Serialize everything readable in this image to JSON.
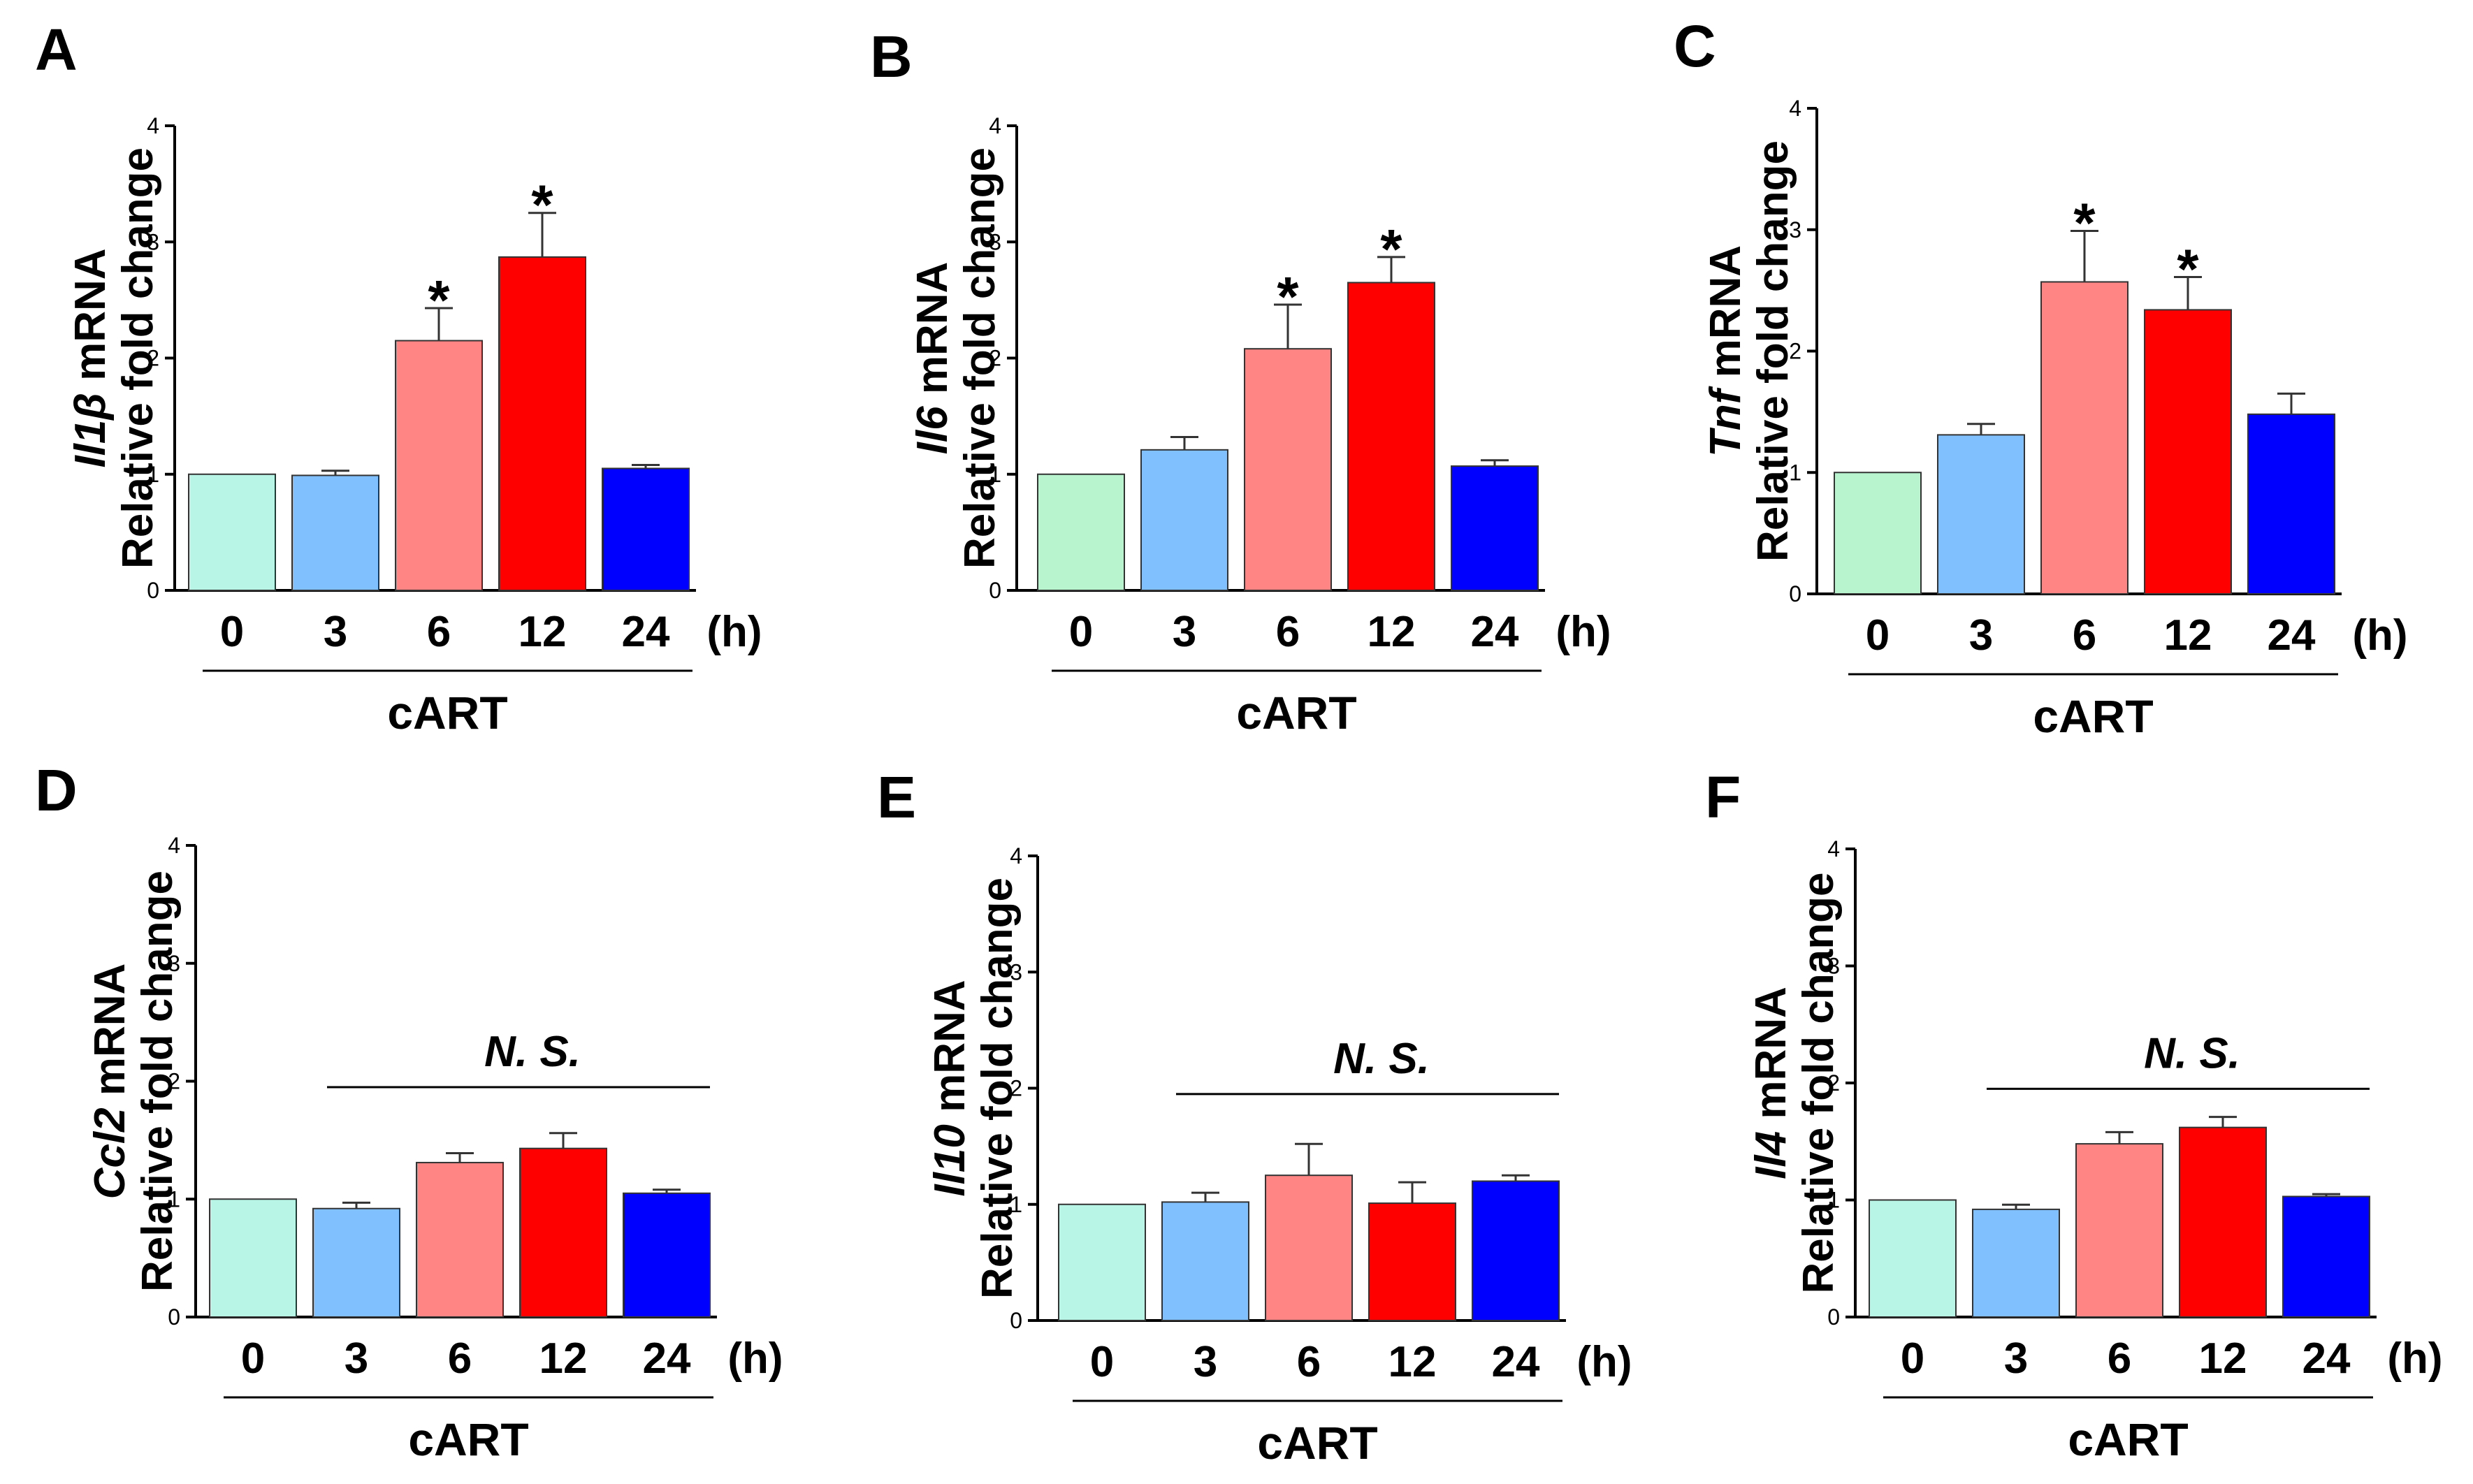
{
  "chart_data": [
    {
      "panel": "A",
      "type": "bar",
      "gene": "Il1β",
      "ylabel_suffix": " mRNA",
      "ylabel_line2": "Relative fold change",
      "categories": [
        "0",
        "3",
        "6",
        "12",
        "24"
      ],
      "unit_label": "(h)",
      "group_label": "cART",
      "values": [
        1.0,
        0.99,
        2.15,
        2.87,
        1.05
      ],
      "errors": [
        0.0,
        0.04,
        0.28,
        0.38,
        0.03
      ],
      "significance": [
        "",
        "",
        "*",
        "*",
        ""
      ],
      "ns_label": "",
      "colors": [
        "#b8f5e6",
        "#80c0ff",
        "#ff8585",
        "#ff0000",
        "#0000ff"
      ],
      "yticks": [
        "0",
        "1",
        "2",
        "3",
        "4"
      ],
      "ylim": [
        0,
        4
      ]
    },
    {
      "panel": "B",
      "type": "bar",
      "gene": "Il6",
      "ylabel_suffix": " mRNA",
      "ylabel_line2": "Relative fold change",
      "categories": [
        "0",
        "3",
        "6",
        "12",
        "24"
      ],
      "unit_label": "(h)",
      "group_label": "cART",
      "values": [
        1.0,
        1.21,
        2.08,
        2.65,
        1.07
      ],
      "errors": [
        0.0,
        0.11,
        0.38,
        0.22,
        0.05
      ],
      "significance": [
        "",
        "",
        "*",
        "*",
        ""
      ],
      "ns_label": "",
      "colors": [
        "#b8f5cf",
        "#80c0ff",
        "#ff8585",
        "#ff0000",
        "#0000ff"
      ],
      "yticks": [
        "0",
        "1",
        "2",
        "3",
        "4"
      ],
      "ylim": [
        0,
        4
      ]
    },
    {
      "panel": "C",
      "type": "bar",
      "gene": "Tnf",
      "ylabel_suffix": " mRNA",
      "ylabel_line2": "Relative fold change",
      "categories": [
        "0",
        "3",
        "6",
        "12",
        "24"
      ],
      "unit_label": "(h)",
      "group_label": "cART",
      "values": [
        1.0,
        1.31,
        2.57,
        2.34,
        1.48
      ],
      "errors": [
        0.0,
        0.09,
        0.42,
        0.27,
        0.17
      ],
      "significance": [
        "",
        "",
        "*",
        "*",
        ""
      ],
      "ns_label": "",
      "colors": [
        "#b8f5cf",
        "#80c0ff",
        "#ff8585",
        "#ff0000",
        "#0000ff"
      ],
      "yticks": [
        "0",
        "1",
        "2",
        "3",
        "4"
      ],
      "ylim": [
        0,
        4
      ]
    },
    {
      "panel": "D",
      "type": "bar",
      "gene": "Ccl2",
      "ylabel_suffix": " mRNA",
      "ylabel_line2": "Relative fold change",
      "categories": [
        "0",
        "3",
        "6",
        "12",
        "24"
      ],
      "unit_label": "(h)",
      "group_label": "cART",
      "values": [
        1.0,
        0.92,
        1.31,
        1.43,
        1.05
      ],
      "errors": [
        0.0,
        0.05,
        0.08,
        0.13,
        0.03
      ],
      "significance": [
        "",
        "",
        "",
        "",
        ""
      ],
      "ns_label": "N. S.",
      "colors": [
        "#b8f5e6",
        "#80c0ff",
        "#ff8585",
        "#ff0000",
        "#0000ff"
      ],
      "yticks": [
        "0",
        "1",
        "2",
        "3",
        "4"
      ],
      "ylim": [
        0,
        4
      ]
    },
    {
      "panel": "E",
      "type": "bar",
      "gene": "Il10",
      "ylabel_suffix": " mRNA",
      "ylabel_line2": "Relative fold change",
      "categories": [
        "0",
        "3",
        "6",
        "12",
        "24"
      ],
      "unit_label": "(h)",
      "group_label": "cART",
      "values": [
        1.0,
        1.02,
        1.25,
        1.01,
        1.2
      ],
      "errors": [
        0.0,
        0.08,
        0.27,
        0.18,
        0.05
      ],
      "significance": [
        "",
        "",
        "",
        "",
        ""
      ],
      "ns_label": "N. S.",
      "colors": [
        "#b8f5e6",
        "#80c0ff",
        "#ff8585",
        "#ff0000",
        "#0000ff"
      ],
      "yticks": [
        "0",
        "1",
        "2",
        "3",
        "4"
      ],
      "ylim": [
        0,
        4
      ]
    },
    {
      "panel": "F",
      "type": "bar",
      "gene": "Il4",
      "ylabel_suffix": " mRNA",
      "ylabel_line2": "Relative fold change",
      "categories": [
        "0",
        "3",
        "6",
        "12",
        "24"
      ],
      "unit_label": "(h)",
      "group_label": "cART",
      "values": [
        1.0,
        0.92,
        1.48,
        1.62,
        1.03
      ],
      "errors": [
        0.0,
        0.04,
        0.1,
        0.09,
        0.02
      ],
      "significance": [
        "",
        "",
        "",
        "",
        ""
      ],
      "ns_label": "N. S.",
      "colors": [
        "#b8f5e6",
        "#80c0ff",
        "#ff8585",
        "#ff0000",
        "#0000ff"
      ],
      "yticks": [
        "0",
        "1",
        "2",
        "3",
        "4"
      ],
      "ylim": [
        0,
        4
      ]
    }
  ]
}
